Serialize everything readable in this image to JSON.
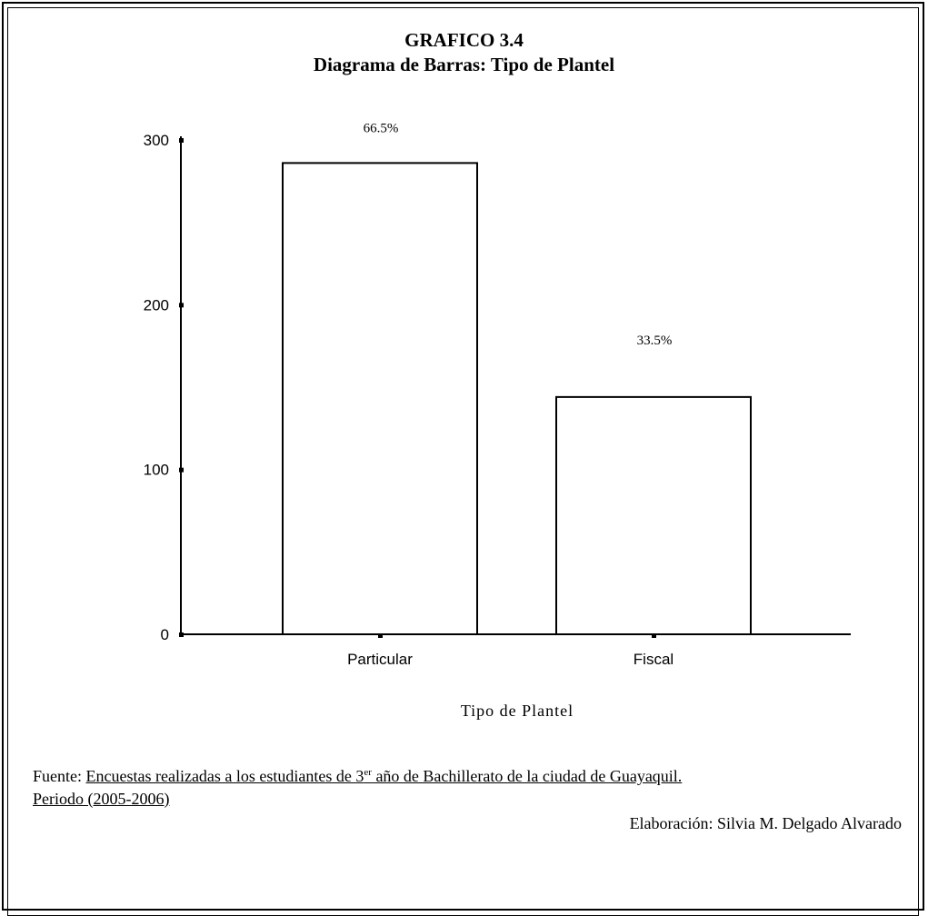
{
  "header": {
    "title_line1": "GRAFICO 3.4",
    "title_line2": "Diagrama de Barras: Tipo de Plantel"
  },
  "chart_data": {
    "type": "bar",
    "categories": [
      "Particular",
      "Fiscal"
    ],
    "values": [
      286,
      144
    ],
    "data_labels": [
      "66.5%",
      "33.5%"
    ],
    "xlabel": "Tipo de Plantel",
    "ylabel": "",
    "ylim": [
      0,
      300
    ],
    "yticks": [
      "0",
      "100",
      "200",
      "300"
    ],
    "grid": false,
    "bar_color": "#ffffff",
    "stroke_color": "#000000"
  },
  "footer": {
    "source_prefix": "Fuente: ",
    "source_part1": "Encuestas realizadas a los estudiantes de 3",
    "source_sup": "er",
    "source_part2": " año de Bachillerato de la ciudad de Guayaquil.",
    "source_part3": "Periodo (2005-2006)",
    "credit": "Elaboración: Silvia M. Delgado Alvarado"
  }
}
